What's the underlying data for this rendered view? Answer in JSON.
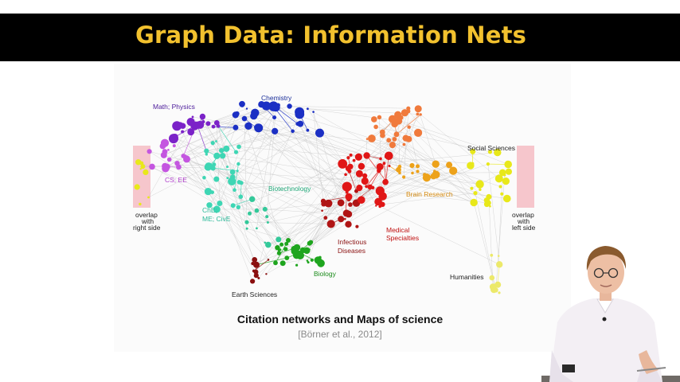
{
  "slide": {
    "title": "Graph Data: Information Nets",
    "caption": "Citation networks and Maps of science",
    "citation": "[Börner et al., 2012]"
  },
  "map": {
    "labels": {
      "math_physics": "Math; Physics",
      "chemistry": "Chemistry",
      "cs_ee": "CS; EE",
      "che_me_cive_1": "ChE;",
      "che_me_cive_2": "ME; CivE",
      "biotechnology": "Biotechnology",
      "brain_research": "Brain Research",
      "social_sciences": "Social Sciences",
      "overlap_right_1": "overlap",
      "overlap_right_2": "with",
      "overlap_right_3": "right side",
      "overlap_left_1": "overlap",
      "overlap_left_2": "with",
      "overlap_left_3": "left side",
      "infectious_1": "Infectious",
      "infectious_2": "Diseases",
      "medical_1": "Medical",
      "medical_2": "Specialties",
      "biology": "Biology",
      "earth_sciences": "Earth Sciences",
      "humanities": "Humanities"
    },
    "colors": {
      "math": "#7b22c8",
      "chemistry": "#1b2fc4",
      "cs": "#c456e0",
      "che": "#3ed6b4",
      "biotech": "#33c99a",
      "biology": "#1ea51e",
      "earth": "#8a0f0f",
      "infectious": "#b01515",
      "medical": "#e01616",
      "brain": "#eda21a",
      "orange": "#f07a3c",
      "social": "#e8e81a",
      "humanities": "#ece96a",
      "overlap": "#f6c6cc"
    }
  }
}
